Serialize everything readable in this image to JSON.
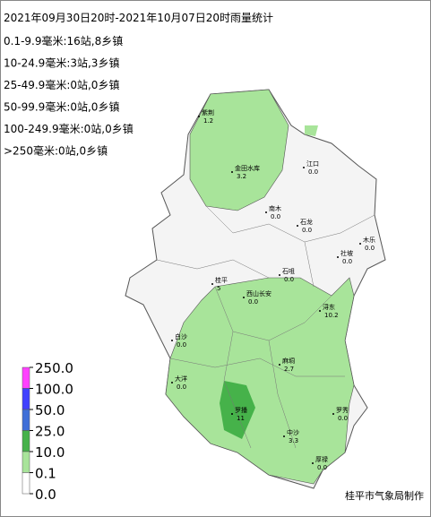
{
  "title": "2021年09月30日20时-2021年10月07日20时雨量统计",
  "stats": [
    "0.1-9.9毫米:16站,8乡镇",
    "10-24.9毫米:3站,3乡镇",
    "25-49.9毫米:0站,0乡镇",
    "50-99.9毫米:0站,0乡镇",
    "100-249.9毫米:0站,0乡镇",
    ">250毫米:0站,0乡镇"
  ],
  "legend": {
    "labels": [
      "250.0",
      "100.0",
      "50.0",
      "25.0",
      "10.0",
      "0.1",
      "0.0"
    ]
  },
  "stations": [
    {
      "name": "紫荆",
      "value": "1.2"
    },
    {
      "name": "金田水库",
      "value": "3.2"
    },
    {
      "name": "江口",
      "value": "0.0"
    },
    {
      "name": "南木",
      "value": "0.0"
    },
    {
      "name": "石龙",
      "value": "0.0"
    },
    {
      "name": "木乐",
      "value": "0.0"
    },
    {
      "name": "桂平",
      "value": "5"
    },
    {
      "name": "西山长安",
      "value": "0.0"
    },
    {
      "name": "石咀",
      "value": "0.0"
    },
    {
      "name": "浔东",
      "value": "10.2"
    },
    {
      "name": "麻垌",
      "value": "2.7"
    },
    {
      "name": "社坡",
      "value": "0.0"
    },
    {
      "name": "大洋",
      "value": "0.0"
    },
    {
      "name": "罗播",
      "value": "11"
    },
    {
      "name": "中沙",
      "value": "3.3"
    },
    {
      "name": "罗秀",
      "value": "0.0"
    },
    {
      "name": "厚禄",
      "value": "0.0"
    },
    {
      "name": "白沙",
      "value": "0.0"
    }
  ],
  "credit": "桂平市气象局制作"
}
